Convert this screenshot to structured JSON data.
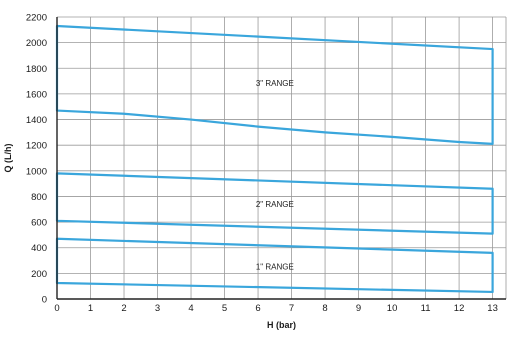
{
  "chart_data": {
    "type": "area",
    "xlabel": "H (bar)",
    "ylabel": "Q (L/h)",
    "xlim": [
      0,
      13.4
    ],
    "ylim": [
      0,
      2200
    ],
    "x_ticks": [
      0,
      1,
      2,
      3,
      4,
      5,
      6,
      7,
      8,
      9,
      10,
      11,
      12,
      13
    ],
    "x_tick_labels": [
      "0",
      "1",
      "2",
      "3",
      "4",
      "5",
      "6",
      "7",
      "8",
      "9",
      "10",
      "11",
      "12",
      "13"
    ],
    "y_ticks": [
      0,
      200,
      400,
      600,
      800,
      1000,
      1200,
      1400,
      1600,
      1800,
      2000,
      2200
    ],
    "y_tick_labels": [
      "0",
      "200",
      "400",
      "600",
      "800",
      "1000",
      "1200",
      "1400",
      "1600",
      "1800",
      "2000",
      "2200"
    ],
    "grid": true,
    "colors": {
      "series": "#3aa6dc",
      "grid": "#9a9a9a",
      "axis": "#222222"
    },
    "series": [
      {
        "name": "3\" RANGE",
        "x": [
          0,
          13
        ],
        "upper": [
          [
            0,
            2130
          ],
          [
            13,
            1950
          ]
        ],
        "lower": [
          [
            0,
            1470
          ],
          [
            2,
            1445
          ],
          [
            4,
            1400
          ],
          [
            6,
            1345
          ],
          [
            8,
            1300
          ],
          [
            10,
            1265
          ],
          [
            12,
            1225
          ],
          [
            13,
            1210
          ]
        ]
      },
      {
        "name": "2\" RANGE",
        "x": [
          0,
          13
        ],
        "upper": [
          [
            0,
            980
          ],
          [
            13,
            860
          ]
        ],
        "lower": [
          [
            0,
            610
          ],
          [
            13,
            510
          ]
        ]
      },
      {
        "name": "1\" RANGE",
        "x": [
          0,
          13
        ],
        "upper": [
          [
            0,
            470
          ],
          [
            13,
            360
          ]
        ],
        "lower": [
          [
            0,
            125
          ],
          [
            13,
            55
          ]
        ]
      }
    ]
  }
}
